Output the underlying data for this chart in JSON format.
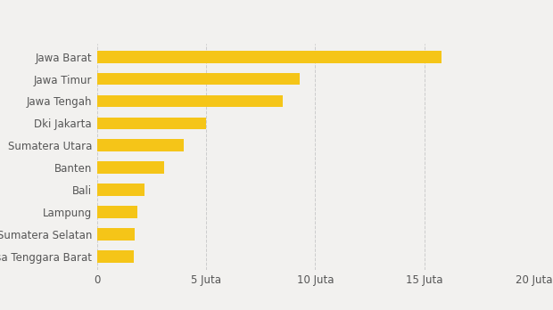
{
  "categories": [
    "Nusa Tenggara Barat",
    "Sumatera Selatan",
    "Lampung",
    "Bali",
    "Banten",
    "Sumatera Utara",
    "Dki Jakarta",
    "Jawa Tengah",
    "Jawa Timur",
    "Jawa Barat"
  ],
  "values": [
    1.7,
    1.75,
    1.85,
    2.2,
    3.1,
    4.0,
    5.0,
    8.5,
    9.3,
    15.8
  ],
  "bar_color": "#F5C518",
  "background_color": "#F2F1EF",
  "xlim": [
    0,
    20
  ],
  "xtick_positions": [
    0,
    5,
    10,
    15,
    20
  ],
  "xtick_labels": [
    "0",
    "5 Juta",
    "10 Juta",
    "15 Juta",
    "20 Juta"
  ],
  "grid_color": "#CCCCCC",
  "bar_height": 0.55,
  "label_fontsize": 8.5,
  "tick_fontsize": 8.5
}
